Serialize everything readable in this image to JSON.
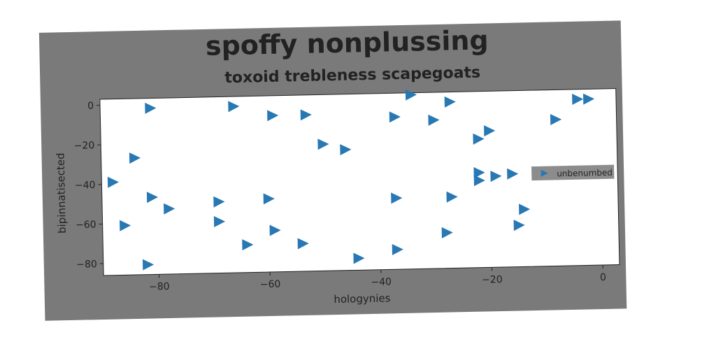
{
  "chart_data": {
    "type": "scatter",
    "title": "spoffy nonplussing",
    "subtitle": "toxoid trebleness scapegoats",
    "xlabel": "hologynies",
    "ylabel": "bipinnatisected",
    "xlim": [
      -90,
      3
    ],
    "ylim": [
      -86,
      3
    ],
    "x_ticks": [
      -80,
      -60,
      -40,
      -20,
      0
    ],
    "y_ticks": [
      0,
      -20,
      -40,
      -60,
      -80
    ],
    "x_tick_labels": [
      "−80",
      "−60",
      "−40",
      "−20",
      "0"
    ],
    "y_tick_labels": [
      "0",
      "−20",
      "−40",
      "−60",
      "−80"
    ],
    "grid": false,
    "legend": {
      "position": "right",
      "entries": [
        "unbenumbed"
      ]
    },
    "series": [
      {
        "name": "unbenumbed",
        "marker": "triangle-right",
        "color": "#2878b4",
        "points": [
          [
            -81,
            -2
          ],
          [
            -66,
            -2
          ],
          [
            -59,
            -7
          ],
          [
            -53,
            -7
          ],
          [
            -37,
            -9
          ],
          [
            -34,
            2
          ],
          [
            -27,
            -2
          ],
          [
            -30,
            -11
          ],
          [
            -22,
            -21
          ],
          [
            -20,
            -17
          ],
          [
            -8,
            -12
          ],
          [
            -4,
            -2
          ],
          [
            -2,
            -2
          ],
          [
            -84,
            -27
          ],
          [
            -50,
            -22
          ],
          [
            -46,
            -25
          ],
          [
            -88,
            -39
          ],
          [
            -81,
            -47
          ],
          [
            -78,
            -53
          ],
          [
            -69,
            -50
          ],
          [
            -60,
            -49
          ],
          [
            -37,
            -50
          ],
          [
            -27,
            -50
          ],
          [
            -22,
            -38
          ],
          [
            -22,
            -42
          ],
          [
            -19,
            -40
          ],
          [
            -16,
            -39
          ],
          [
            -86,
            -61
          ],
          [
            -69,
            -60
          ],
          [
            -59,
            -65
          ],
          [
            -64,
            -72
          ],
          [
            -54,
            -72
          ],
          [
            -28,
            -68
          ],
          [
            -14,
            -57
          ],
          [
            -15,
            -65
          ],
          [
            -82,
            -81
          ],
          [
            -44,
            -80
          ],
          [
            -37,
            -76
          ]
        ]
      }
    ]
  },
  "colors": {
    "frame": "#7a7a7a",
    "plot_bg": "#ffffff",
    "marker": "#2878b4",
    "legend_bg": "#8c8c8c"
  }
}
